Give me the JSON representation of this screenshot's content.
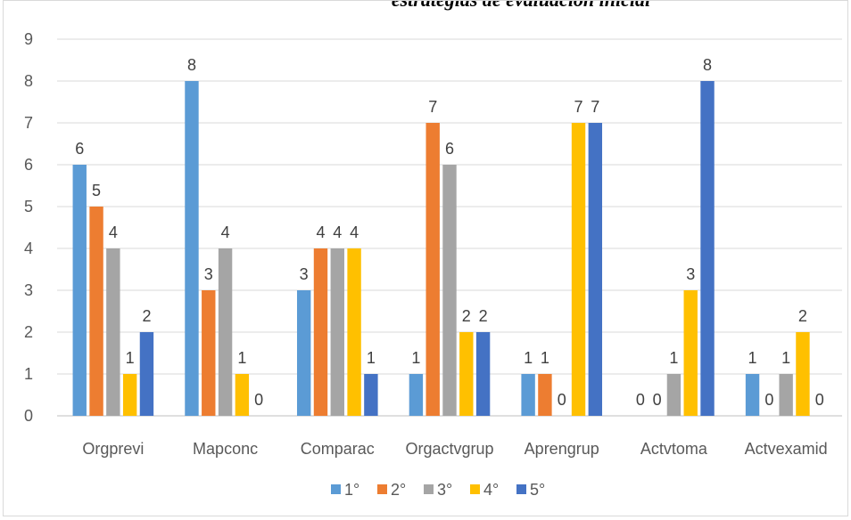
{
  "chart_data": {
    "type": "bar",
    "title": "estrategias de evaluación inicial",
    "categories": [
      "Orgprevi",
      "Mapconc",
      "Comparac",
      "Orgactvgrup",
      "Aprengrup",
      "Actvtoma",
      "Actvexamid"
    ],
    "series": [
      {
        "name": "1°",
        "color": "#5b9bd5",
        "values": [
          6,
          8,
          3,
          1,
          1,
          0,
          1
        ]
      },
      {
        "name": "2°",
        "color": "#ed7d31",
        "values": [
          5,
          3,
          4,
          7,
          1,
          0,
          0
        ]
      },
      {
        "name": "3°",
        "color": "#a5a5a5",
        "values": [
          4,
          4,
          4,
          6,
          0,
          1,
          1
        ]
      },
      {
        "name": "4°",
        "color": "#ffc000",
        "values": [
          1,
          1,
          4,
          2,
          7,
          3,
          2
        ]
      },
      {
        "name": "5°",
        "color": "#4472c4",
        "values": [
          2,
          0,
          1,
          2,
          7,
          8,
          0
        ]
      }
    ],
    "ylim": [
      0,
      9
    ],
    "yticks": [
      0,
      1,
      2,
      3,
      4,
      5,
      6,
      7,
      8,
      9
    ],
    "grid": true,
    "legend": "bottom",
    "data_labels": true
  }
}
